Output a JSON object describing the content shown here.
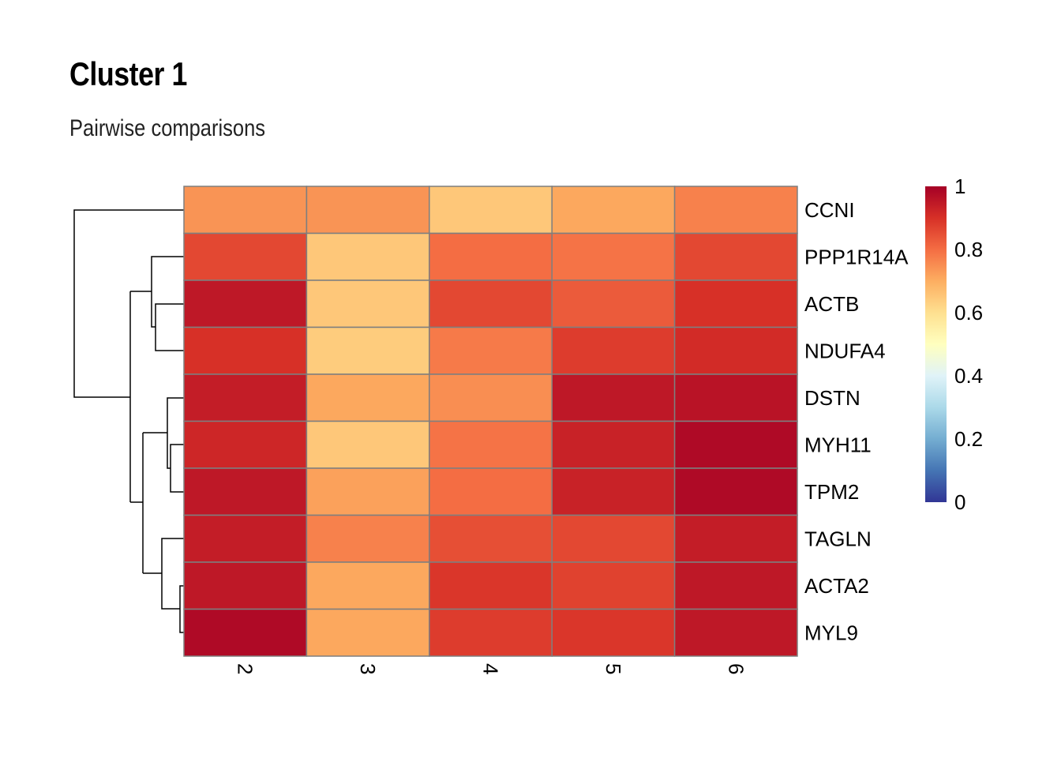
{
  "title": "Cluster 1",
  "subtitle": "Pairwise comparisons",
  "chart_data": {
    "type": "heatmap",
    "columns": [
      "2",
      "3",
      "4",
      "5",
      "6"
    ],
    "rows": [
      "CCNI",
      "PPP1R14A",
      "ACTB",
      "NDUFA4",
      "DSTN",
      "MYH11",
      "TPM2",
      "TAGLN",
      "ACTA2",
      "MYL9"
    ],
    "values": [
      [
        0.74,
        0.74,
        0.65,
        0.71,
        0.77
      ],
      [
        0.86,
        0.65,
        0.8,
        0.79,
        0.86
      ],
      [
        0.95,
        0.65,
        0.86,
        0.83,
        0.9
      ],
      [
        0.9,
        0.64,
        0.78,
        0.88,
        0.91
      ],
      [
        0.94,
        0.71,
        0.75,
        0.95,
        0.96
      ],
      [
        0.92,
        0.65,
        0.79,
        0.93,
        0.98
      ],
      [
        0.95,
        0.72,
        0.8,
        0.93,
        0.98
      ],
      [
        0.94,
        0.77,
        0.85,
        0.86,
        0.94
      ],
      [
        0.95,
        0.71,
        0.89,
        0.87,
        0.95
      ],
      [
        0.98,
        0.71,
        0.88,
        0.89,
        0.95
      ]
    ],
    "legend": {
      "ticks": [
        "0",
        "0.2",
        "0.4",
        "0.6",
        "0.8",
        "1"
      ],
      "range": [
        0,
        1
      ],
      "colors": [
        "#313695",
        "#4575B4",
        "#74ADD1",
        "#ABD9E9",
        "#E0F3F8",
        "#FFFFBF",
        "#FEE090",
        "#FDAE61",
        "#F46D43",
        "#D73027",
        "#A50026"
      ]
    },
    "row_dendrogram": "shown on left",
    "grid": true
  }
}
